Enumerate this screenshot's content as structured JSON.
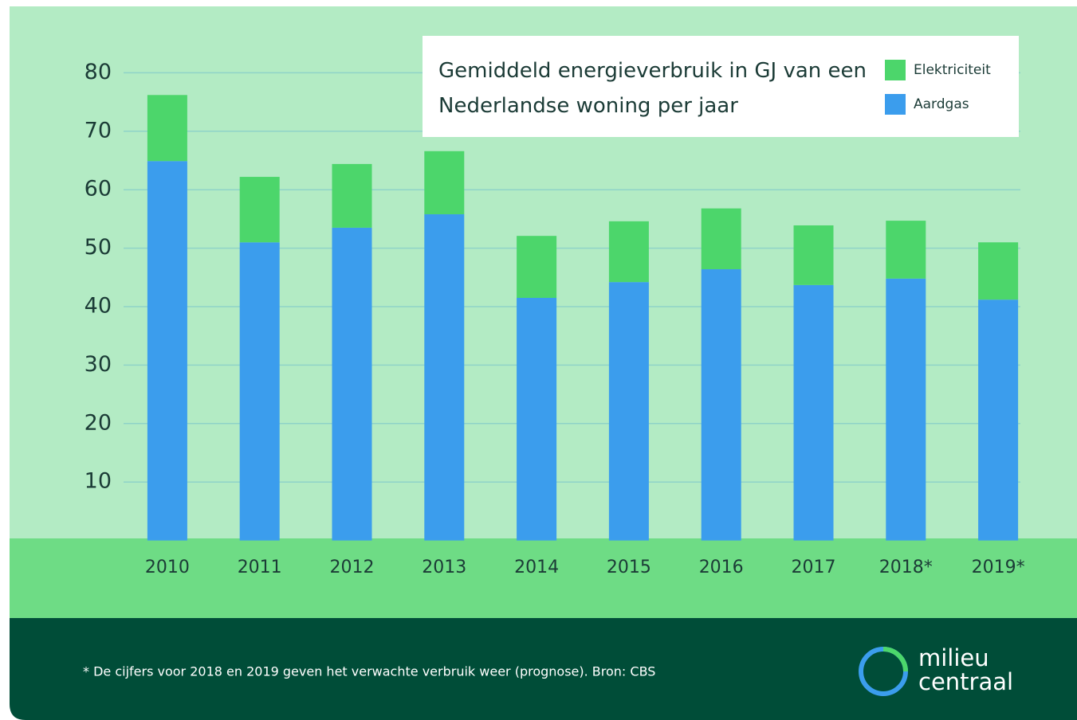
{
  "chart_data": {
    "type": "stacked_bar",
    "title": "Gemiddeld energieverbruik in GJ van een Nederlandse woning per jaar",
    "categories": [
      "2010",
      "2011",
      "2012",
      "2013",
      "2014",
      "2015",
      "2016",
      "2017",
      "2018*",
      "2019*"
    ],
    "series": [
      {
        "name": "Aardgas",
        "color": "#3b9ded",
        "values": [
          64.9,
          51.0,
          53.5,
          55.8,
          41.5,
          44.2,
          46.4,
          43.7,
          44.8,
          41.2
        ]
      },
      {
        "name": "Elektriciteit",
        "color": "#4cd66b",
        "values": [
          11.3,
          11.2,
          10.9,
          10.8,
          10.6,
          10.4,
          10.4,
          10.2,
          9.9,
          9.8
        ]
      }
    ],
    "ylim": [
      0,
      80
    ],
    "yticks": [
      10,
      20,
      30,
      40,
      50,
      60,
      70,
      80
    ],
    "grid": true,
    "footnote": "* De cijfers voor 2018 en 2019 geven het verwachte verbruik weer (prognose). Bron: CBS",
    "logo": [
      "milieu",
      "centraal"
    ]
  }
}
